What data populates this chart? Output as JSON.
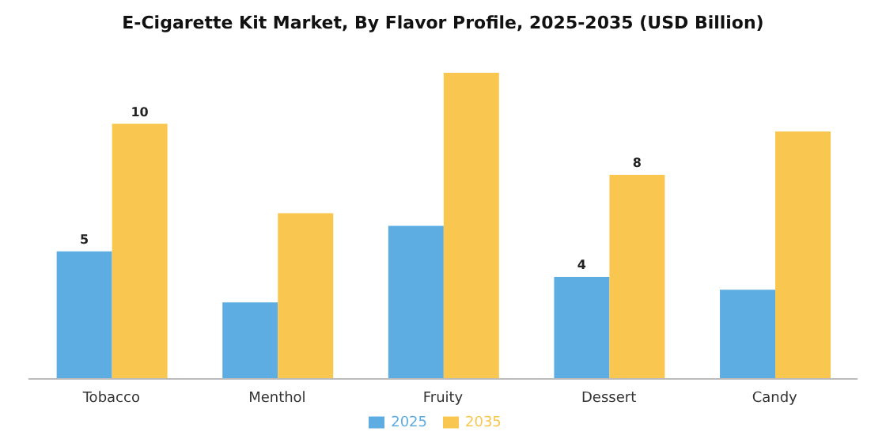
{
  "chart_data": {
    "type": "bar",
    "title": "E-Cigarette Kit Market, By Flavor Profile, 2025-2035 (USD Billion)",
    "categories": [
      "Tobacco",
      "Menthol",
      "Fruity",
      "Dessert",
      "Candy"
    ],
    "series": [
      {
        "name": "2025",
        "color": "#5dade2",
        "values": [
          5,
          3,
          6,
          4,
          3.5
        ],
        "value_labels": [
          "5",
          null,
          null,
          "4",
          null
        ]
      },
      {
        "name": "2035",
        "color": "#f9c74f",
        "values": [
          10,
          6.5,
          12,
          8,
          9.7
        ],
        "value_labels": [
          "10",
          null,
          null,
          "8",
          null
        ]
      }
    ],
    "legend": "bottom",
    "grid": false
  }
}
